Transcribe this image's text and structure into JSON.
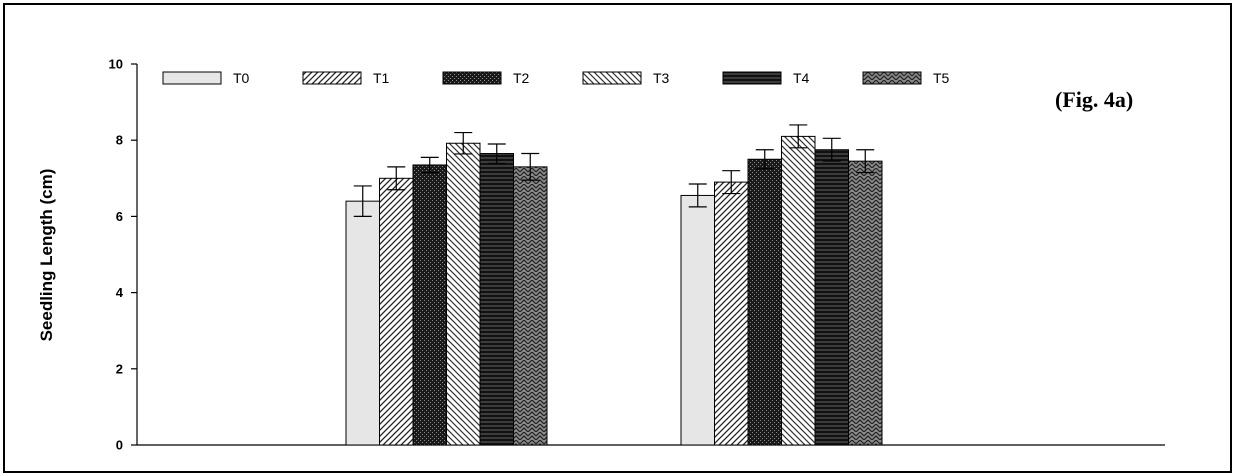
{
  "chart_data": {
    "type": "bar",
    "figure_label": "(Fig. 4a)",
    "ylabel": "Seedling Length (cm)",
    "xlabel": "",
    "ylim": [
      0,
      10
    ],
    "yticks": [
      "0",
      "2",
      "4",
      "6",
      "8",
      "10"
    ],
    "categories": [
      "",
      ""
    ],
    "legend_position": "top-left",
    "grid": false,
    "series": [
      {
        "name": "T0",
        "values": [
          6.4,
          6.55
        ],
        "errors": [
          0.4,
          0.3
        ],
        "pattern": "plain-light"
      },
      {
        "name": "T1",
        "values": [
          7.0,
          6.9
        ],
        "errors": [
          0.3,
          0.3
        ],
        "pattern": "diagonal-up"
      },
      {
        "name": "T2",
        "values": [
          7.35,
          7.5
        ],
        "errors": [
          0.2,
          0.25
        ],
        "pattern": "dense-dark"
      },
      {
        "name": "T3",
        "values": [
          7.92,
          8.1
        ],
        "errors": [
          0.28,
          0.3
        ],
        "pattern": "diagonal-down"
      },
      {
        "name": "T4",
        "values": [
          7.65,
          7.75
        ],
        "errors": [
          0.25,
          0.3
        ],
        "pattern": "horizontal-dark"
      },
      {
        "name": "T5",
        "values": [
          7.3,
          7.45
        ],
        "errors": [
          0.35,
          0.3
        ],
        "pattern": "zigzag"
      }
    ]
  }
}
